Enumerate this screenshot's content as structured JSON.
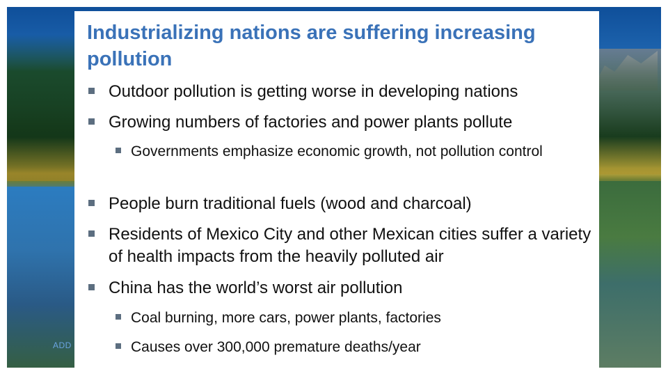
{
  "slide": {
    "title": "Industrializing nations are suffering increasing pollution",
    "footer_text": "ADD",
    "bullets": [
      {
        "level": 1,
        "text": "Outdoor pollution is getting worse in developing nations"
      },
      {
        "level": 1,
        "text": "Growing numbers of factories and power plants pollute"
      },
      {
        "level": 2,
        "text": "Governments emphasize economic growth, not pollution control"
      },
      {
        "level": 1,
        "text": "People burn traditional fuels (wood and charcoal)"
      },
      {
        "level": 1,
        "text": "Residents of Mexico City and other Mexican cities suffer a variety of health impacts from the heavily polluted air"
      },
      {
        "level": 1,
        "text": "China has the world’s worst air pollution"
      },
      {
        "level": 2,
        "text": "Coal burning, more cars, power plants, factories"
      },
      {
        "level": 2,
        "text": "Causes over 300,000 premature deaths/year"
      }
    ],
    "colors": {
      "title": "#3a72b8",
      "bullet_marker": "#5c6e80",
      "text": "#111111"
    },
    "bullet_icon": "square-bullet-icon",
    "background_image": "forest-lake-photo"
  }
}
